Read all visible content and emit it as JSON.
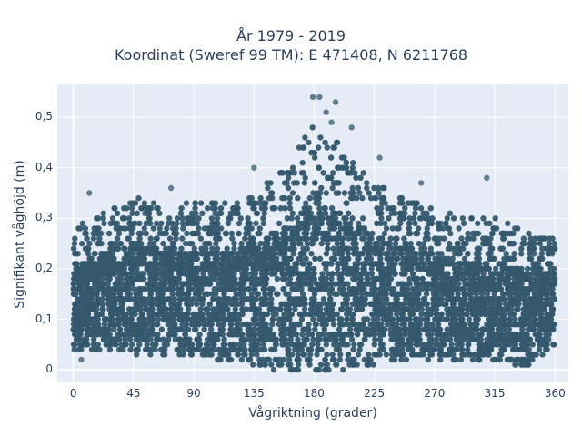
{
  "chart_data": {
    "type": "scatter",
    "title_line1": "År 1979 - 2019",
    "title_line2": "Koordinat (Sweref 99 TM): E 471408, N 6211768",
    "xlabel": "Vågriktning (grader)",
    "ylabel": "Signifikant våghöjd (m)",
    "xlim": [
      -12,
      370
    ],
    "ylim": [
      -0.025,
      0.565
    ],
    "x_ticks": [
      0,
      45,
      90,
      135,
      180,
      225,
      270,
      315,
      360
    ],
    "x_tick_labels": [
      "0",
      "45",
      "90",
      "135",
      "180",
      "225",
      "270",
      "315",
      "360"
    ],
    "y_ticks": [
      0,
      0.1,
      0.2,
      0.3,
      0.4,
      0.5
    ],
    "y_tick_labels": [
      "0",
      "0,1",
      "0,2",
      "0,3",
      "0,4",
      "0,5"
    ],
    "grid": true,
    "marker_color": "#34586e",
    "plot_background": "#e5ecf6",
    "envelope": {
      "x": [
        0,
        20,
        45,
        70,
        90,
        110,
        135,
        160,
        180,
        200,
        225,
        250,
        270,
        290,
        315,
        340,
        360
      ],
      "lower": [
        0.04,
        0.04,
        0.03,
        0.03,
        0.03,
        0.02,
        0.01,
        0.0,
        0.0,
        0.0,
        0.01,
        0.02,
        0.02,
        0.02,
        0.02,
        0.01,
        0.05
      ],
      "upper": [
        0.28,
        0.31,
        0.34,
        0.33,
        0.33,
        0.33,
        0.35,
        0.41,
        0.49,
        0.44,
        0.37,
        0.34,
        0.32,
        0.3,
        0.3,
        0.27,
        0.26
      ]
    },
    "outliers": [
      {
        "x": 179,
        "y": 0.54
      },
      {
        "x": 184,
        "y": 0.54
      },
      {
        "x": 189,
        "y": 0.51
      },
      {
        "x": 196,
        "y": 0.53
      },
      {
        "x": 193,
        "y": 0.49
      },
      {
        "x": 208,
        "y": 0.48
      },
      {
        "x": 184,
        "y": 0.0
      },
      {
        "x": 190,
        "y": 0.01
      },
      {
        "x": 6,
        "y": 0.02
      },
      {
        "x": 12,
        "y": 0.35
      },
      {
        "x": 73,
        "y": 0.36
      },
      {
        "x": 135,
        "y": 0.4
      },
      {
        "x": 229,
        "y": 0.42
      },
      {
        "x": 260,
        "y": 0.37
      },
      {
        "x": 309,
        "y": 0.38
      },
      {
        "x": 330,
        "y": 0.01
      }
    ]
  }
}
